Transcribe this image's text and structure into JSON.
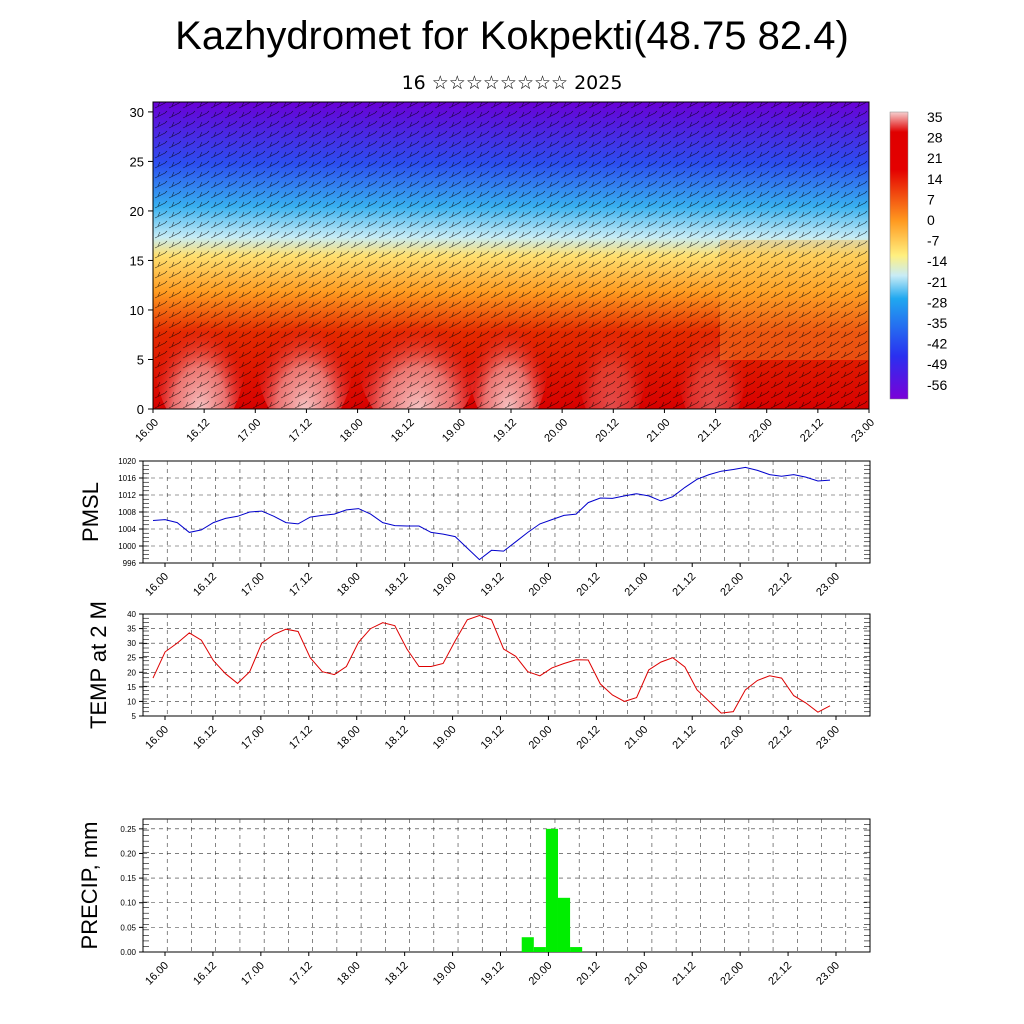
{
  "title": "Kazhydromet for Kokpekti(48.75 82.4)",
  "subtitle": "16 ☆☆☆☆☆☆☆☆ 2025",
  "chart_data": [
    {
      "type": "heatmap",
      "panel": "cross-section",
      "y_ticks": [
        0,
        5,
        10,
        15,
        20,
        25,
        30
      ],
      "ylim": [
        0,
        31
      ],
      "x_tick_labels": [
        "16.00",
        "16.12",
        "17.00",
        "17.12",
        "18.00",
        "18.12",
        "19.00",
        "19.12",
        "20.00",
        "20.12",
        "21.00",
        "21.12",
        "22.00",
        "22.12",
        "23.00"
      ],
      "colorbar_labels": [
        "35",
        "28",
        "21",
        "14",
        "7",
        "0",
        "-7",
        "-14",
        "-21",
        "-28",
        "-35",
        "-42",
        "-49",
        "-56"
      ],
      "colorbar_range": [
        -63,
        42
      ],
      "colors": {
        "cold": "#6a00d6",
        "mid": "#ffe070",
        "warm": "#e00000",
        "hot": "#f8c8c8"
      }
    },
    {
      "type": "line",
      "ylabel": "PMSL",
      "ylim": [
        996,
        1020
      ],
      "y_ticks": [
        996,
        1000,
        1004,
        1008,
        1012,
        1016,
        1020
      ],
      "x_tick_labels": [
        "16.00",
        "16.12",
        "17.00",
        "17.12",
        "18.00",
        "18.12",
        "19.00",
        "19.12",
        "20.00",
        "20.12",
        "21.00",
        "21.12",
        "22.00",
        "22.12",
        "23.00"
      ],
      "color": "#0000cc",
      "values": [
        1006,
        1006.2,
        1005.5,
        1003.2,
        1003.8,
        1005.5,
        1006.5,
        1007,
        1008,
        1008.2,
        1007,
        1005.5,
        1005.2,
        1006.8,
        1007.2,
        1007.5,
        1008.5,
        1008.8,
        1007.5,
        1005.5,
        1004.8,
        1004.7,
        1004.7,
        1003.2,
        1002.8,
        1002.2,
        999.5,
        996.8,
        999,
        998.8,
        1001,
        1003.2,
        1005.2,
        1006.2,
        1007.2,
        1007.5,
        1010.2,
        1011.3,
        1011.2,
        1011.8,
        1012.3,
        1011.8,
        1010.6,
        1011.6,
        1013.8,
        1015.7,
        1016.8,
        1017.6,
        1018,
        1018.5,
        1017.8,
        1016.8,
        1016.4,
        1016.8,
        1016.2,
        1015.3,
        1015.5
      ]
    },
    {
      "type": "line",
      "ylabel": "TEMP at 2 M",
      "ylim": [
        5,
        40
      ],
      "y_ticks": [
        5,
        10,
        15,
        20,
        25,
        30,
        35,
        40
      ],
      "x_tick_labels": [
        "16.00",
        "16.12",
        "17.00",
        "17.12",
        "18.00",
        "18.12",
        "19.00",
        "19.12",
        "20.00",
        "20.12",
        "21.00",
        "21.12",
        "22.00",
        "22.12",
        "23.00"
      ],
      "color": "#dd0000",
      "values": [
        18,
        27,
        30,
        33.5,
        31,
        24,
        19.5,
        16.2,
        20.2,
        30,
        33,
        34.8,
        34,
        25,
        20.2,
        19.2,
        22,
        30.3,
        35,
        37,
        36,
        28,
        22,
        22,
        23,
        30.8,
        38,
        39.5,
        38,
        28,
        25.5,
        20.2,
        18.8,
        21.5,
        23,
        24.3,
        24.2,
        16,
        12.2,
        10,
        11.3,
        20.8,
        23.5,
        25,
        21.8,
        14,
        10,
        6,
        6.5,
        14,
        17.2,
        18.8,
        18,
        12,
        9.5,
        6.3,
        8.5
      ]
    },
    {
      "type": "bar",
      "ylabel": "PRECIP, mm",
      "ylim": [
        0,
        0.27
      ],
      "y_ticks": [
        0.0,
        0.05,
        0.1,
        0.15,
        0.2,
        0.25
      ],
      "y_tick_labels": [
        "0.00",
        "0.05",
        "0.10",
        "0.15",
        "0.20",
        "0.25"
      ],
      "x_tick_labels": [
        "16.00",
        "16.12",
        "17.00",
        "17.12",
        "18.00",
        "18.12",
        "19.00",
        "19.12",
        "20.00",
        "20.12",
        "21.00",
        "21.12",
        "22.00",
        "22.12",
        "23.00"
      ],
      "color": "#00ee00",
      "values": [
        0,
        0,
        0,
        0,
        0,
        0,
        0,
        0,
        0,
        0,
        0,
        0,
        0,
        0,
        0,
        0,
        0,
        0,
        0,
        0,
        0,
        0,
        0,
        0,
        0,
        0,
        0,
        0,
        0,
        0,
        0,
        0.03,
        0.01,
        0.25,
        0.11,
        0.01,
        0,
        0,
        0,
        0,
        0,
        0,
        0,
        0,
        0,
        0,
        0,
        0,
        0,
        0,
        0,
        0,
        0,
        0,
        0,
        0,
        0
      ]
    }
  ]
}
